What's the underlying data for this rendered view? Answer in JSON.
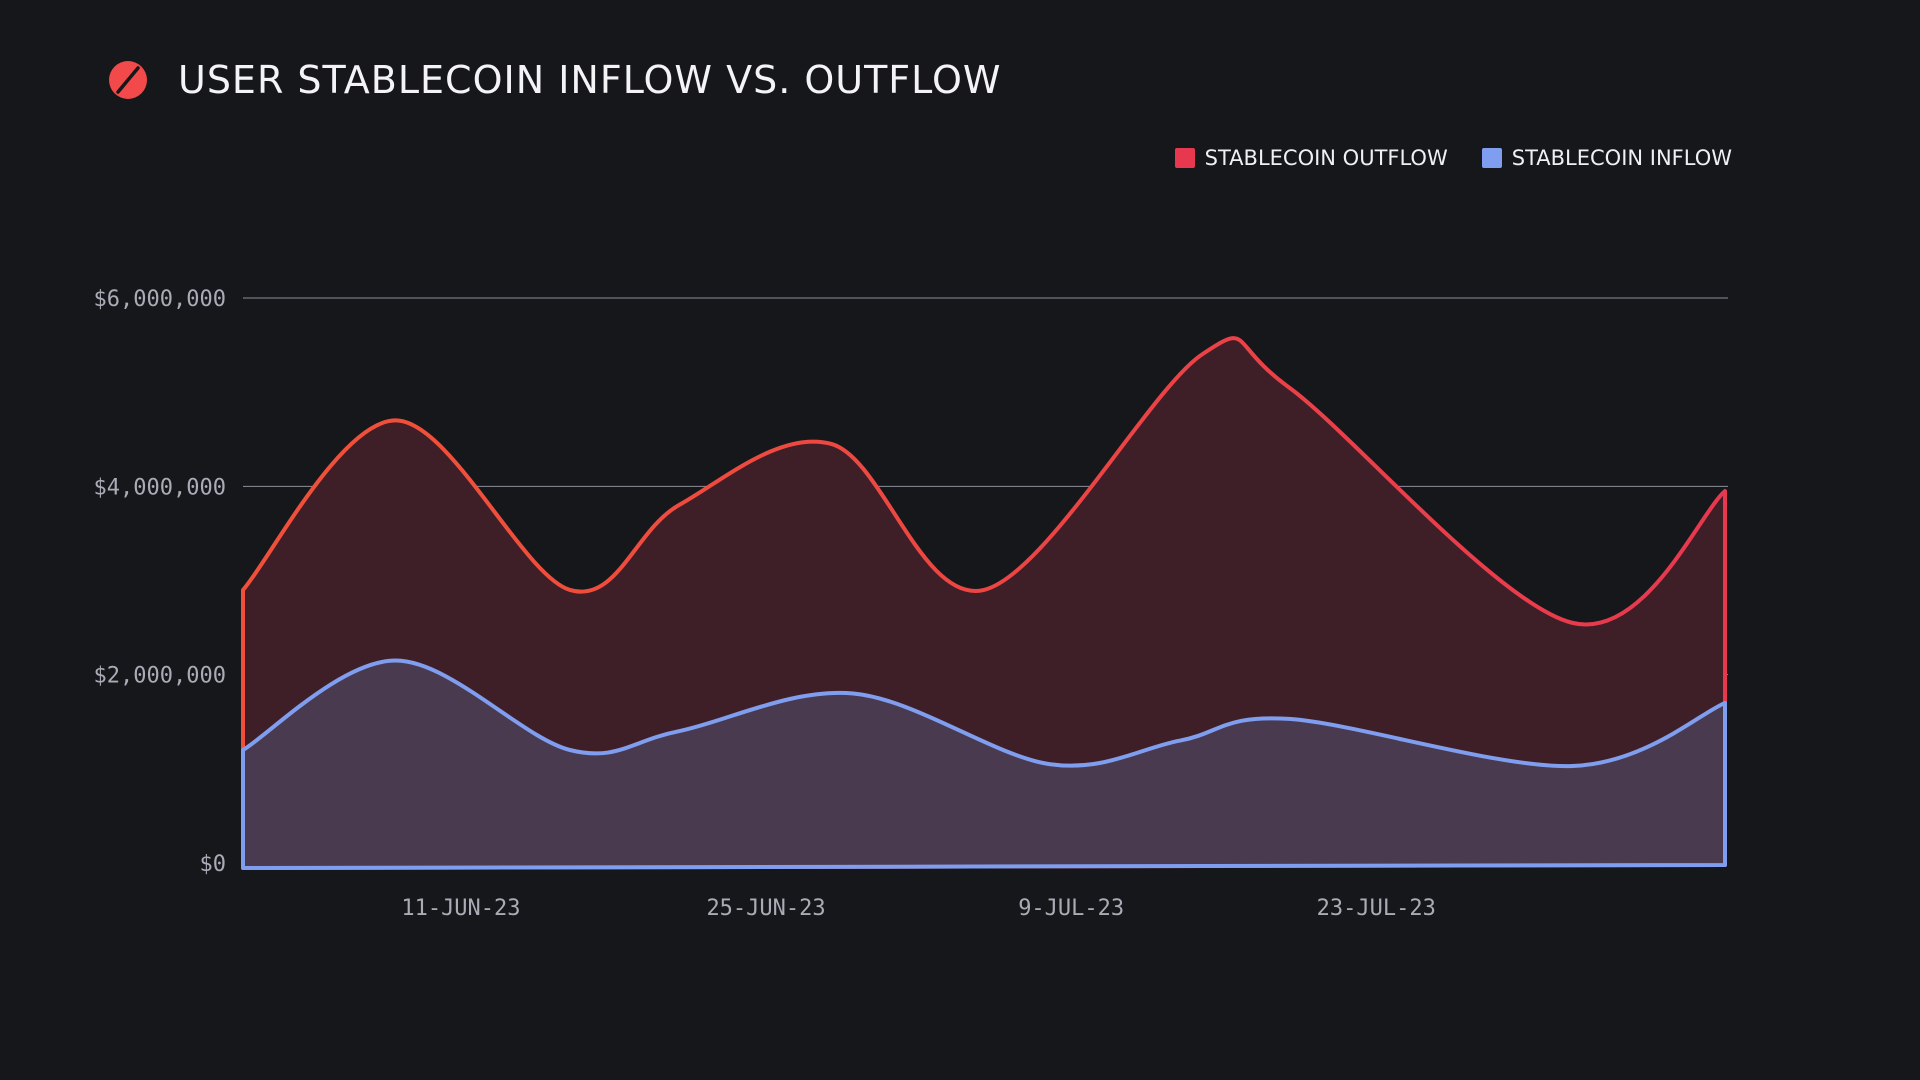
{
  "header": {
    "title": "USER STABLECOIN INFLOW VS. OUTFLOW",
    "logo_icon": "slashed-circle-logo-icon"
  },
  "colors": {
    "background": "#16171b",
    "outflow_line": "#e8384f",
    "outflow_line_start": "#f0503a",
    "outflow_fill": "#3f1f27",
    "inflow_line": "#7f9ef0",
    "inflow_fill": "#4a3a50",
    "grid": "#8c8f99"
  },
  "chart_data": {
    "type": "area",
    "title": "USER STABLECOIN INFLOW VS. OUTFLOW",
    "xlabel": "",
    "ylabel": "",
    "x_range": [
      "2023-06-01",
      "2023-08-08"
    ],
    "ylim": [
      0,
      6000000
    ],
    "y_ticks": [
      {
        "value": 0,
        "label": "$0"
      },
      {
        "value": 2000000,
        "label": "$2,000,000"
      },
      {
        "value": 4000000,
        "label": "$4,000,000"
      },
      {
        "value": 6000000,
        "label": "$6,000,000"
      }
    ],
    "x_ticks": [
      {
        "day": 10,
        "label": "11-JUN-23"
      },
      {
        "day": 24,
        "label": "25-JUN-23"
      },
      {
        "day": 38,
        "label": "9-JUL-23"
      },
      {
        "day": 52,
        "label": "23-JUL-23"
      }
    ],
    "grid": true,
    "legend_position": "top-right",
    "series": [
      {
        "name": "STABLECOIN OUTFLOW",
        "color": "#e8384f",
        "points": [
          {
            "day": 0,
            "value": 2900000
          },
          {
            "day": 7,
            "value": 4700000
          },
          {
            "day": 15,
            "value": 2900000
          },
          {
            "day": 20,
            "value": 3800000
          },
          {
            "day": 27,
            "value": 4450000
          },
          {
            "day": 34,
            "value": 2900000
          },
          {
            "day": 44,
            "value": 5400000
          },
          {
            "day": 48,
            "value": 5050000
          },
          {
            "day": 61,
            "value": 2550000
          },
          {
            "day": 68,
            "value": 3950000
          }
        ]
      },
      {
        "name": "STABLECOIN INFLOW",
        "color": "#7f9ef0",
        "points": [
          {
            "day": 0,
            "value": 1200000
          },
          {
            "day": 7,
            "value": 2150000
          },
          {
            "day": 15,
            "value": 1200000
          },
          {
            "day": 20,
            "value": 1400000
          },
          {
            "day": 28,
            "value": 1800000
          },
          {
            "day": 37,
            "value": 1050000
          },
          {
            "day": 43,
            "value": 1300000
          },
          {
            "day": 48,
            "value": 1530000
          },
          {
            "day": 61,
            "value": 1030000
          },
          {
            "day": 68,
            "value": 1700000
          }
        ]
      }
    ]
  }
}
